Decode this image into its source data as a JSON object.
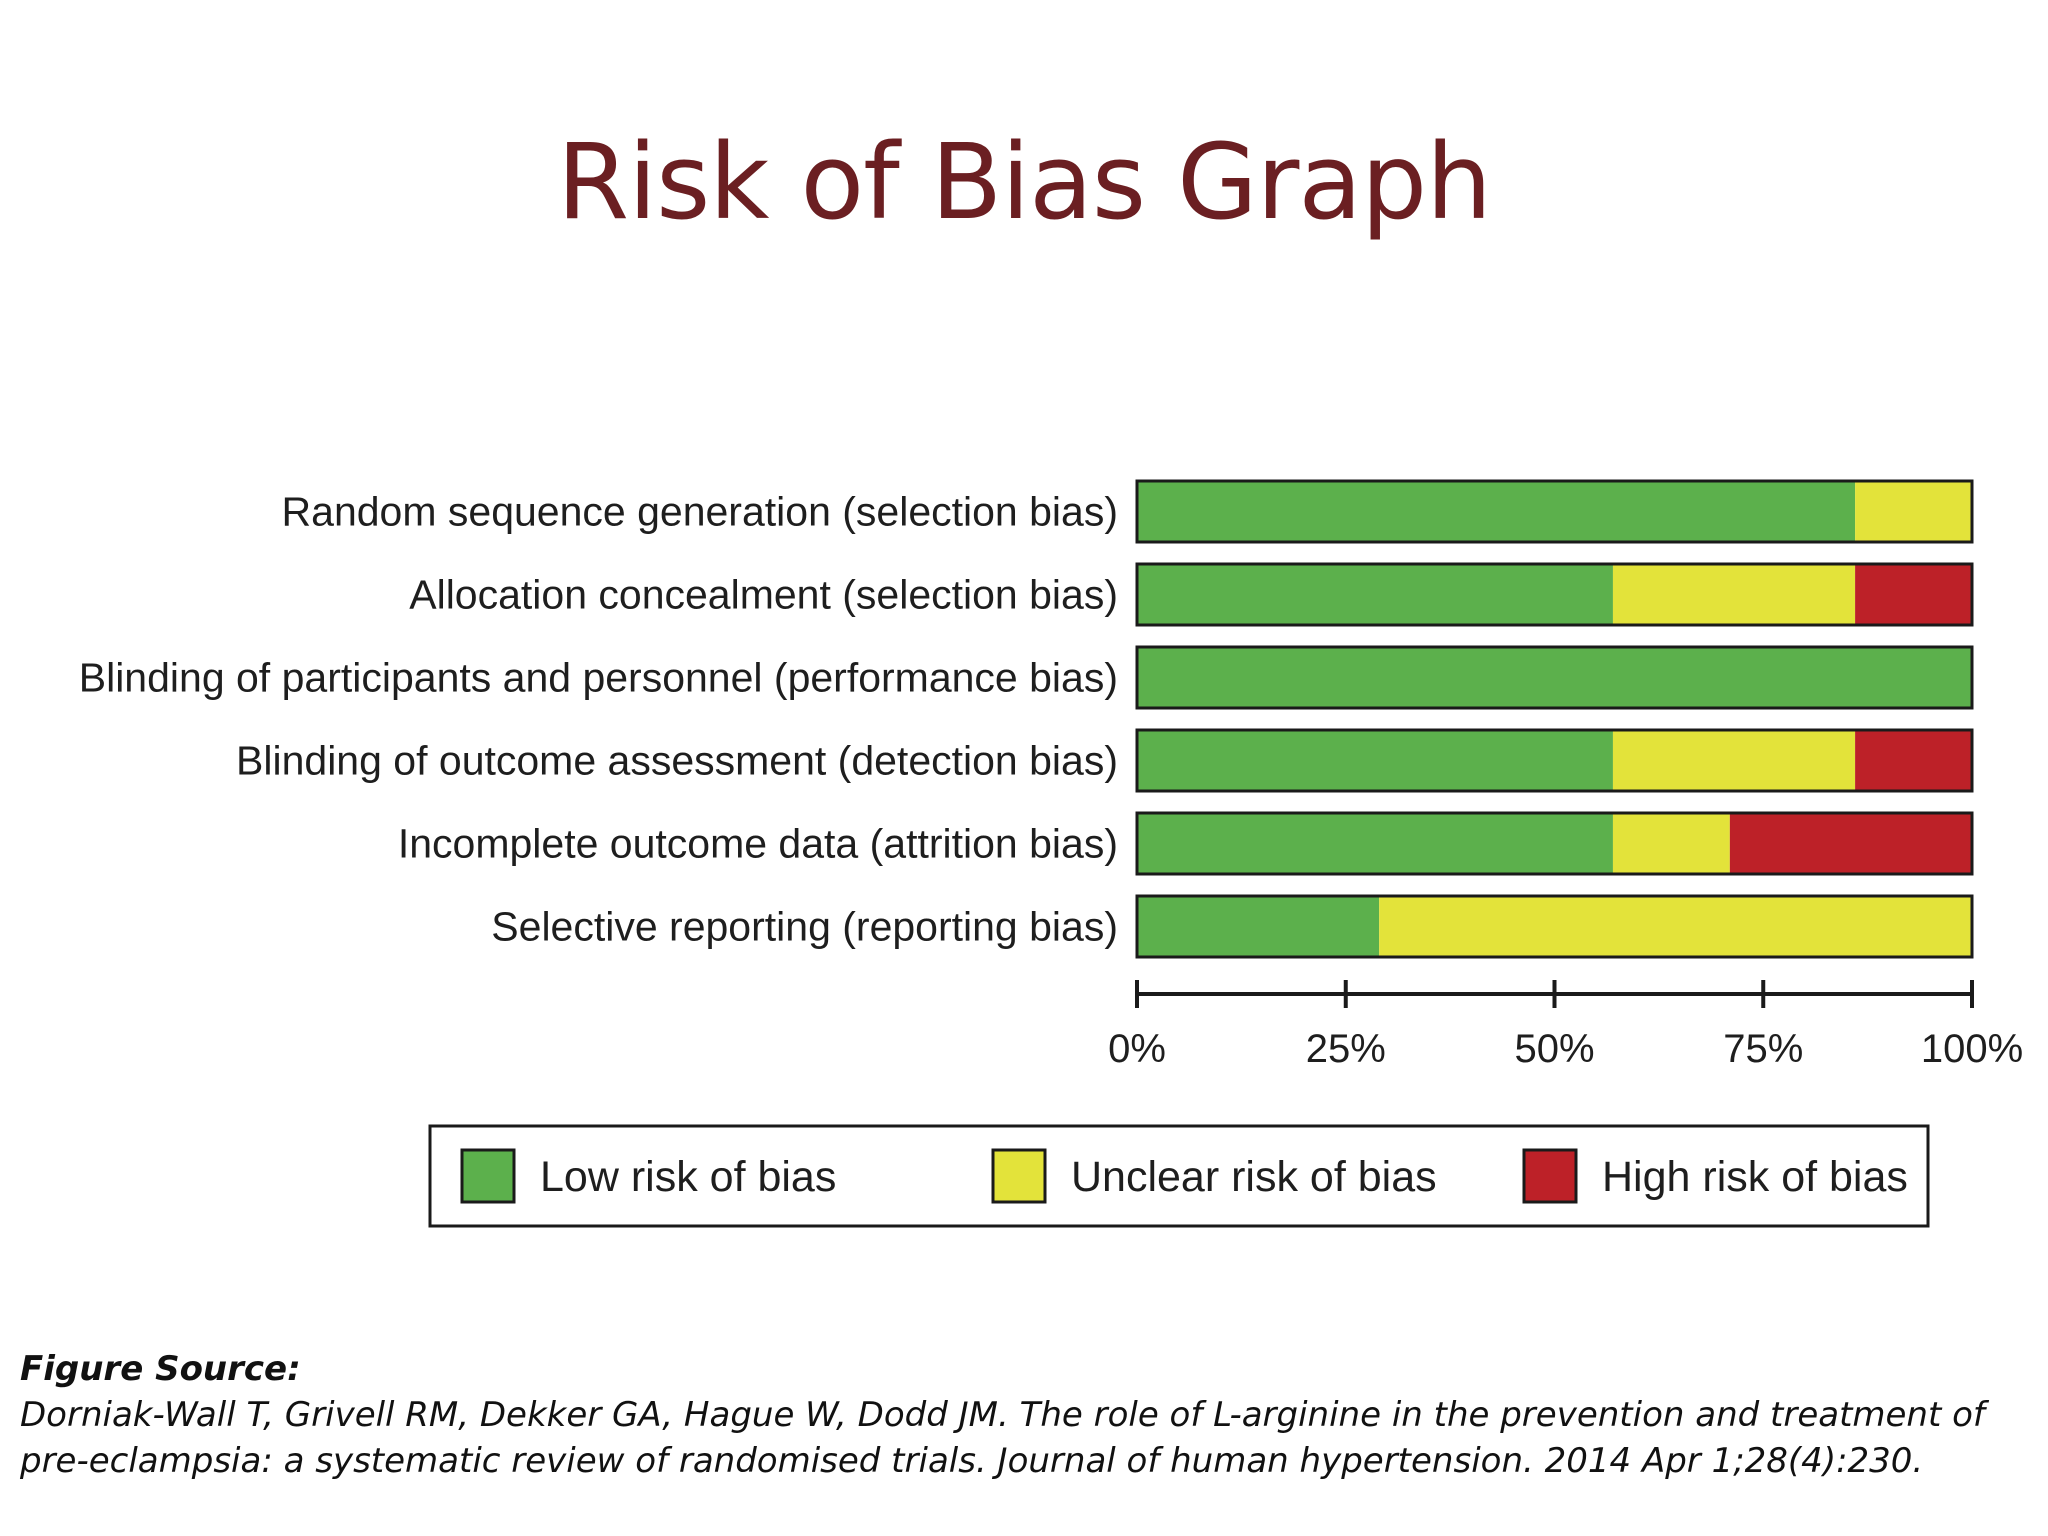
{
  "slide": {
    "title": "Risk of Bias Graph",
    "source_heading": "Figure Source:",
    "source_text": "Dorniak-Wall T, Grivell RM, Dekker GA, Hague W, Dodd JM. The role of L-arginine in the prevention and treatment of pre-eclampsia: a systematic review of randomised trials. Journal of human hypertension. 2014 Apr 1;28(4):230."
  },
  "chart_data": {
    "type": "bar",
    "orientation": "horizontal",
    "stacked": true,
    "categories": [
      "Random sequence generation (selection bias)",
      "Allocation concealment (selection bias)",
      "Blinding of participants and personnel (performance bias)",
      "Blinding of outcome assessment (detection bias)",
      "Incomplete outcome data (attrition bias)",
      "Selective reporting (reporting bias)"
    ],
    "series": [
      {
        "name": "Low risk of bias",
        "color": "#5cb04c",
        "values": [
          86,
          57,
          100,
          57,
          57,
          29
        ]
      },
      {
        "name": "Unclear risk of bias",
        "color": "#e3e33a",
        "values": [
          14,
          29,
          0,
          29,
          14,
          71
        ]
      },
      {
        "name": "High risk of bias",
        "color": "#bd2128",
        "values": [
          0,
          14,
          0,
          14,
          29,
          0
        ]
      }
    ],
    "xlim": [
      0,
      100
    ],
    "x_ticks": [
      "0%",
      "25%",
      "50%",
      "75%",
      "100%"
    ],
    "legend_position": "bottom",
    "grid": false
  }
}
